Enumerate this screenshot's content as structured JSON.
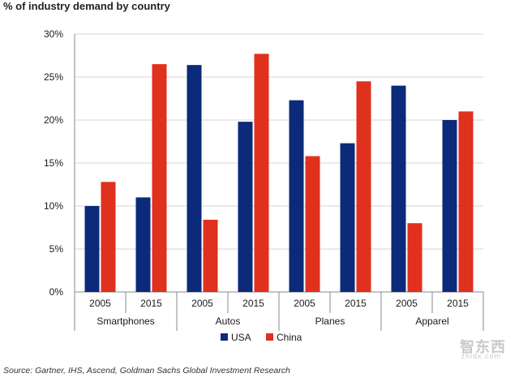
{
  "title": "% of industry demand by country",
  "source": "Source: Gartner, IHS, Ascend, Goldman Sachs Global Investment Research",
  "watermark": {
    "text": "智东西",
    "sub": "zhidx.com"
  },
  "chart_data": {
    "type": "bar",
    "title": "% of industry demand by country",
    "xlabel": "",
    "ylabel": "",
    "ylim": [
      0,
      30
    ],
    "yticks": [
      "0%",
      "5%",
      "10%",
      "15%",
      "20%",
      "25%",
      "30%"
    ],
    "ytick_values": [
      0,
      5,
      10,
      15,
      20,
      25,
      30
    ],
    "grid": true,
    "legend": "bottom-center",
    "groups": [
      {
        "name": "Smartphones",
        "categories": [
          "2005",
          "2015"
        ]
      },
      {
        "name": "Autos",
        "categories": [
          "2005",
          "2015"
        ]
      },
      {
        "name": "Planes",
        "categories": [
          "2005",
          "2015"
        ]
      },
      {
        "name": "Apparel",
        "categories": [
          "2005",
          "2015"
        ]
      }
    ],
    "categories": [
      "2005",
      "2015",
      "2005",
      "2015",
      "2005",
      "2015",
      "2005",
      "2015"
    ],
    "series": [
      {
        "name": "USA",
        "color": "#0b2a7a",
        "values": [
          10,
          11,
          26.4,
          19.8,
          22.3,
          17.3,
          24,
          20
        ]
      },
      {
        "name": "China",
        "color": "#e0301e",
        "values": [
          12.8,
          26.5,
          8.4,
          27.7,
          15.8,
          24.5,
          8,
          21
        ]
      }
    ]
  }
}
